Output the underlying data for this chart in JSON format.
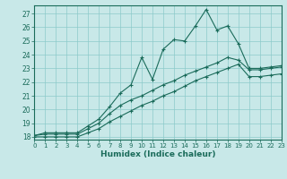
{
  "xlabel": "Humidex (Indice chaleur)",
  "ylabel": "",
  "bg_color": "#c8e8e8",
  "line_color": "#1a6b5a",
  "xlim": [
    0,
    23
  ],
  "ylim": [
    17.8,
    27.6
  ],
  "xticks": [
    0,
    1,
    2,
    3,
    4,
    5,
    6,
    7,
    8,
    9,
    10,
    11,
    12,
    13,
    14,
    15,
    16,
    17,
    18,
    19,
    20,
    21,
    22,
    23
  ],
  "yticks": [
    18,
    19,
    20,
    21,
    22,
    23,
    24,
    25,
    26,
    27
  ],
  "line1_x": [
    0,
    1,
    2,
    3,
    4,
    5,
    6,
    7,
    8,
    9,
    10,
    11,
    12,
    13,
    14,
    15,
    16,
    17,
    18,
    19,
    20,
    21,
    22,
    23
  ],
  "line1_y": [
    18.1,
    18.3,
    18.3,
    18.3,
    18.3,
    18.8,
    19.3,
    20.2,
    21.2,
    21.8,
    23.8,
    22.2,
    24.4,
    25.1,
    25.0,
    26.1,
    27.3,
    25.8,
    26.1,
    24.8,
    23.0,
    23.0,
    23.1,
    23.2
  ],
  "line2_x": [
    0,
    1,
    2,
    3,
    4,
    5,
    6,
    7,
    8,
    9,
    10,
    11,
    12,
    13,
    14,
    15,
    16,
    17,
    18,
    19,
    20,
    21,
    22,
    23
  ],
  "line2_y": [
    18.1,
    18.2,
    18.2,
    18.2,
    18.2,
    18.6,
    19.0,
    19.7,
    20.3,
    20.7,
    21.0,
    21.4,
    21.8,
    22.1,
    22.5,
    22.8,
    23.1,
    23.4,
    23.8,
    23.6,
    22.9,
    22.9,
    23.0,
    23.1
  ],
  "line3_x": [
    0,
    1,
    2,
    3,
    4,
    5,
    6,
    7,
    8,
    9,
    10,
    11,
    12,
    13,
    14,
    15,
    16,
    17,
    18,
    19,
    20,
    21,
    22,
    23
  ],
  "line3_y": [
    18.0,
    18.0,
    18.0,
    18.0,
    18.0,
    18.3,
    18.6,
    19.1,
    19.5,
    19.9,
    20.3,
    20.6,
    21.0,
    21.3,
    21.7,
    22.1,
    22.4,
    22.7,
    23.0,
    23.3,
    22.4,
    22.4,
    22.5,
    22.6
  ]
}
